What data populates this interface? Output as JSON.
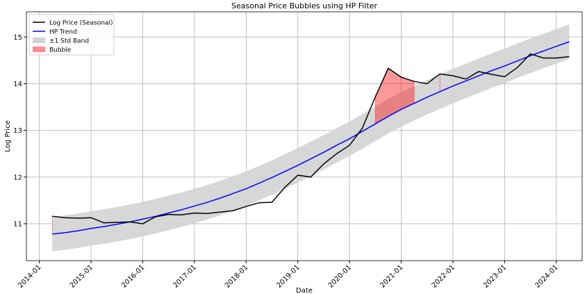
{
  "chart_data": {
    "type": "line",
    "title": "Seasonal Price Bubbles using HP Filter",
    "xlabel": "Date",
    "ylabel": "Log Price",
    "x": [
      "2014-04",
      "2014-07",
      "2014-10",
      "2015-01",
      "2015-04",
      "2015-07",
      "2015-10",
      "2016-01",
      "2016-04",
      "2016-07",
      "2016-10",
      "2017-01",
      "2017-04",
      "2017-07",
      "2017-10",
      "2018-01",
      "2018-04",
      "2018-07",
      "2018-10",
      "2019-01",
      "2019-04",
      "2019-07",
      "2019-10",
      "2020-01",
      "2020-04",
      "2020-07",
      "2020-10",
      "2021-01",
      "2021-04",
      "2021-07",
      "2021-10",
      "2022-01",
      "2022-04",
      "2022-07",
      "2022-10",
      "2023-01",
      "2023-04",
      "2023-07",
      "2023-10",
      "2024-01",
      "2024-04"
    ],
    "series": [
      {
        "name": "Log Price (Seasonal)",
        "color": "#000000",
        "values": [
          11.16,
          11.13,
          11.12,
          11.13,
          11.02,
          11.03,
          11.04,
          11.0,
          11.15,
          11.2,
          11.19,
          11.23,
          11.22,
          11.25,
          11.28,
          11.37,
          11.45,
          11.46,
          11.78,
          12.04,
          12.0,
          12.28,
          12.5,
          12.68,
          13.05,
          13.72,
          14.33,
          14.14,
          14.05,
          14.0,
          14.21,
          14.17,
          14.1,
          14.26,
          14.2,
          14.15,
          14.35,
          14.64,
          14.55,
          14.55,
          14.58
        ]
      },
      {
        "name": "HP Trend",
        "color": "#0000ff",
        "values": [
          10.78,
          10.81,
          10.85,
          10.9,
          10.94,
          10.99,
          11.04,
          11.1,
          11.16,
          11.23,
          11.3,
          11.38,
          11.46,
          11.55,
          11.65,
          11.75,
          11.87,
          11.99,
          12.12,
          12.25,
          12.39,
          12.53,
          12.68,
          12.82,
          12.98,
          13.14,
          13.3,
          13.45,
          13.58,
          13.71,
          13.83,
          13.95,
          14.06,
          14.17,
          14.28,
          14.38,
          14.49,
          14.6,
          14.7,
          14.8,
          14.9
        ]
      }
    ],
    "band": {
      "name": "±1 Std Band",
      "color": "#d3d3d3",
      "upper": [
        11.15,
        11.18,
        11.22,
        11.27,
        11.31,
        11.36,
        11.41,
        11.47,
        11.53,
        11.6,
        11.67,
        11.75,
        11.83,
        11.92,
        12.02,
        12.12,
        12.24,
        12.36,
        12.49,
        12.62,
        12.76,
        12.9,
        13.05,
        13.19,
        13.35,
        13.51,
        13.67,
        13.82,
        13.95,
        14.08,
        14.2,
        14.32,
        14.43,
        14.54,
        14.65,
        14.75,
        14.86,
        14.97,
        15.07,
        15.17,
        15.27
      ],
      "lower": [
        10.41,
        10.44,
        10.48,
        10.53,
        10.57,
        10.62,
        10.67,
        10.73,
        10.79,
        10.86,
        10.93,
        11.01,
        11.09,
        11.18,
        11.28,
        11.38,
        11.5,
        11.62,
        11.75,
        11.88,
        12.02,
        12.16,
        12.31,
        12.45,
        12.61,
        12.77,
        12.93,
        13.08,
        13.21,
        13.34,
        13.46,
        13.58,
        13.69,
        13.8,
        13.91,
        14.01,
        14.12,
        14.23,
        14.33,
        14.43,
        14.53
      ]
    },
    "bubble": {
      "name": "Bubble",
      "color": "#ff0000"
    },
    "xlim": [
      "2013-10",
      "2024-07"
    ],
    "xticks": [
      "2014-01",
      "2015-01",
      "2016-01",
      "2017-01",
      "2018-01",
      "2019-01",
      "2020-01",
      "2021-01",
      "2022-01",
      "2023-01",
      "2024-01"
    ],
    "ylim": [
      10.21,
      15.54
    ],
    "yticks": [
      11,
      12,
      13,
      14,
      15
    ],
    "grid": true,
    "legend": "upper left"
  }
}
